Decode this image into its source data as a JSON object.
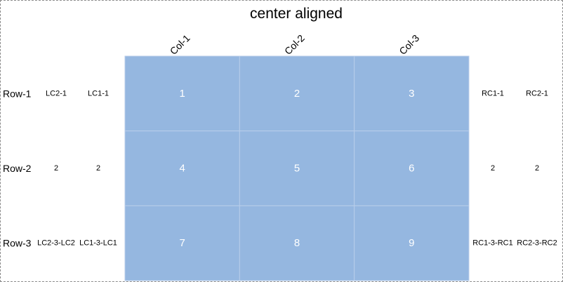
{
  "chart_data": {
    "type": "heatmap",
    "title": "center aligned",
    "columns": [
      "Col-1",
      "Col-2",
      "Col-3"
    ],
    "rows": [
      "Row-1",
      "Row-2",
      "Row-3"
    ],
    "values": [
      [
        1,
        2,
        3
      ],
      [
        4,
        5,
        6
      ],
      [
        7,
        8,
        9
      ]
    ],
    "left_labels": [
      [
        "LC2-1",
        "LC1-1"
      ],
      [
        "2",
        "2"
      ],
      [
        "LC2-3-LC2",
        "LC1-3-LC1"
      ]
    ],
    "right_labels": [
      [
        "RC1-1",
        "RC2-1"
      ],
      [
        "2",
        "2"
      ],
      [
        "RC1-3-RC1",
        "RC2-3-RC2"
      ]
    ],
    "cell_color": "#95b7e0",
    "cell_text_color": "#ffffff",
    "grid_line_color": "#b8cdea"
  }
}
